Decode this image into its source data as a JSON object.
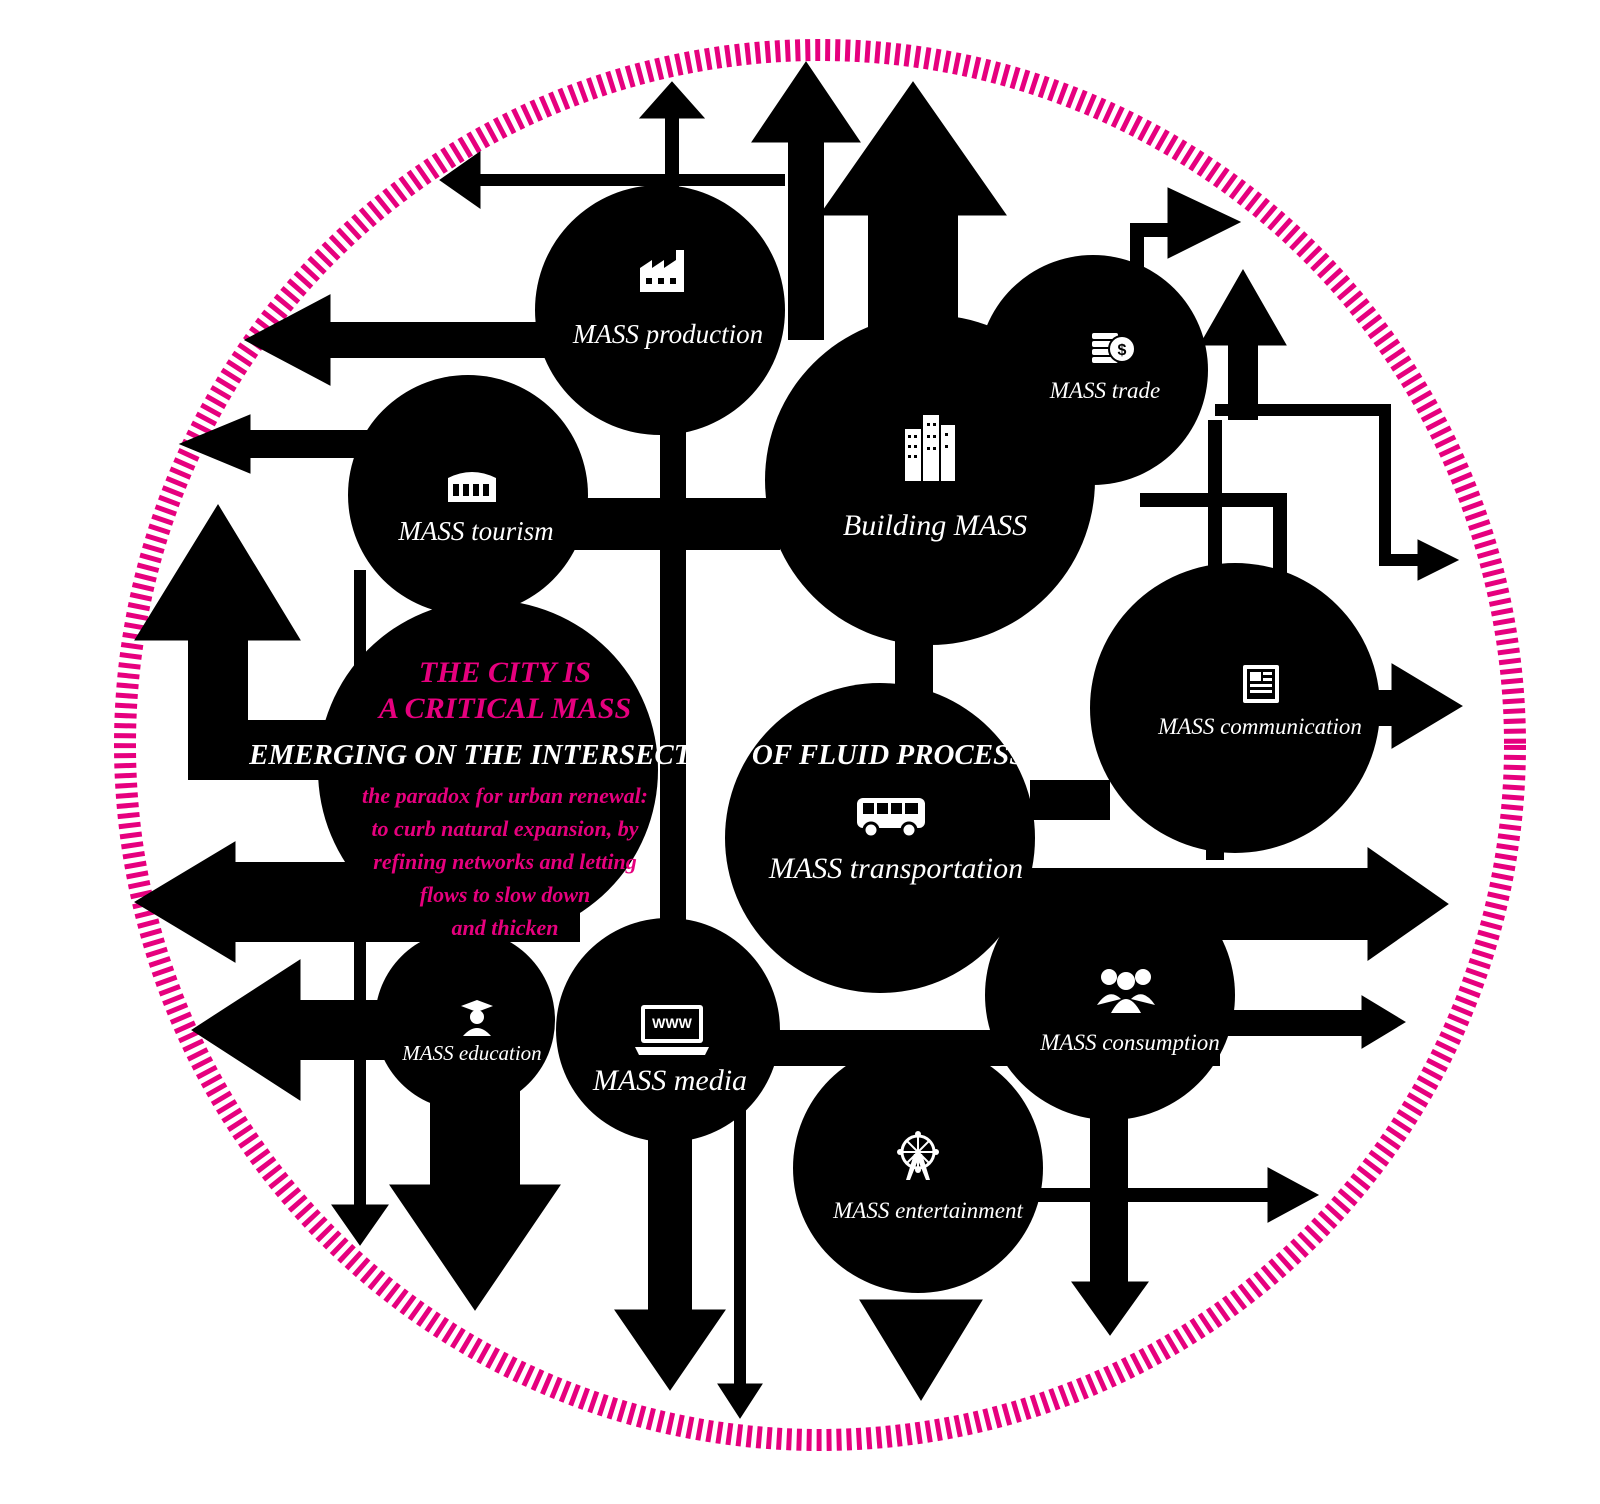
{
  "colors": {
    "accent": "#e6007e",
    "shape": "#000000",
    "background": "#ffffff",
    "label": "#ffffff"
  },
  "center_text": {
    "title_line_1": "THE CITY IS",
    "title_line_2": "A CRITICAL MASS",
    "subtitle": "EMERGING ON THE INTERSECTION OF FLUID PROCESSES",
    "note_lines": [
      "the paradox for urban renewal:",
      "to curb natural expansion, by",
      "refining networks and letting",
      "flows to slow down",
      "and thicken"
    ]
  },
  "nodes": {
    "production": {
      "label": "MASS production",
      "icon": "factory-icon"
    },
    "tourism": {
      "label": "MASS tourism",
      "icon": "colosseum-icon"
    },
    "building": {
      "label": "Building MASS",
      "icon": "buildings-icon"
    },
    "trade": {
      "label": "MASS trade",
      "icon": "coins-icon"
    },
    "communication": {
      "label": "MASS communication",
      "icon": "newspaper-icon"
    },
    "transportation": {
      "label": "MASS transportation",
      "icon": "bus-icon"
    },
    "consumption": {
      "label": "MASS consumption",
      "icon": "people-icon"
    },
    "education": {
      "label": "MASS education",
      "icon": "graduate-icon"
    },
    "media": {
      "label": "MASS media",
      "icon": "laptop-icon",
      "screen_text": "WWW"
    },
    "entertainment": {
      "label": "MASS entertainment",
      "icon": "ferris-wheel-icon"
    }
  }
}
